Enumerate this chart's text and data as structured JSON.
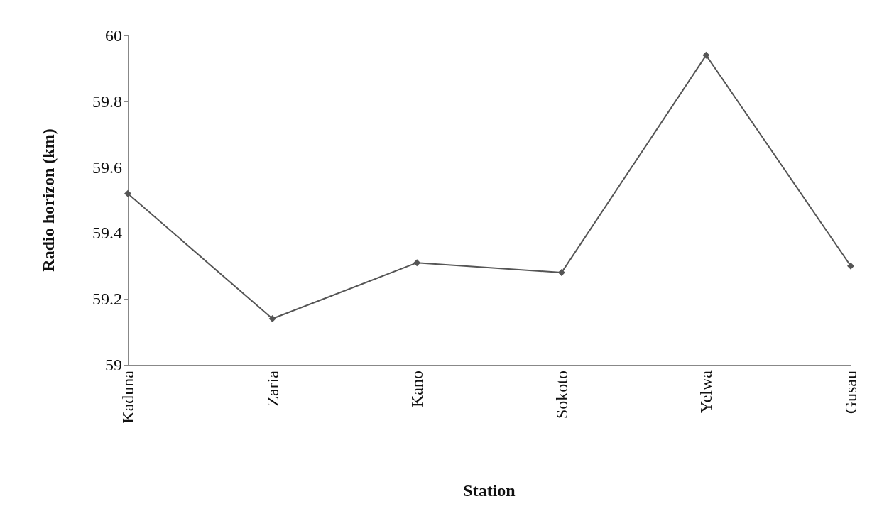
{
  "chart_data": {
    "type": "line",
    "xlabel": "Station",
    "ylabel": "Radio horizon (km)",
    "categories": [
      "Kaduna",
      "Zaria",
      "Kano",
      "Sokoto",
      "Yelwa",
      "Gusau"
    ],
    "series": [
      {
        "color": "#555555",
        "values": [
          59.52,
          59.14,
          59.31,
          59.28,
          59.94,
          59.3
        ]
      }
    ],
    "ylim": [
      59,
      60
    ],
    "yticks": [
      59,
      59.2,
      59.4,
      59.6,
      59.8,
      60
    ],
    "grid": false,
    "marker": "diamond",
    "line_style": "solid"
  }
}
